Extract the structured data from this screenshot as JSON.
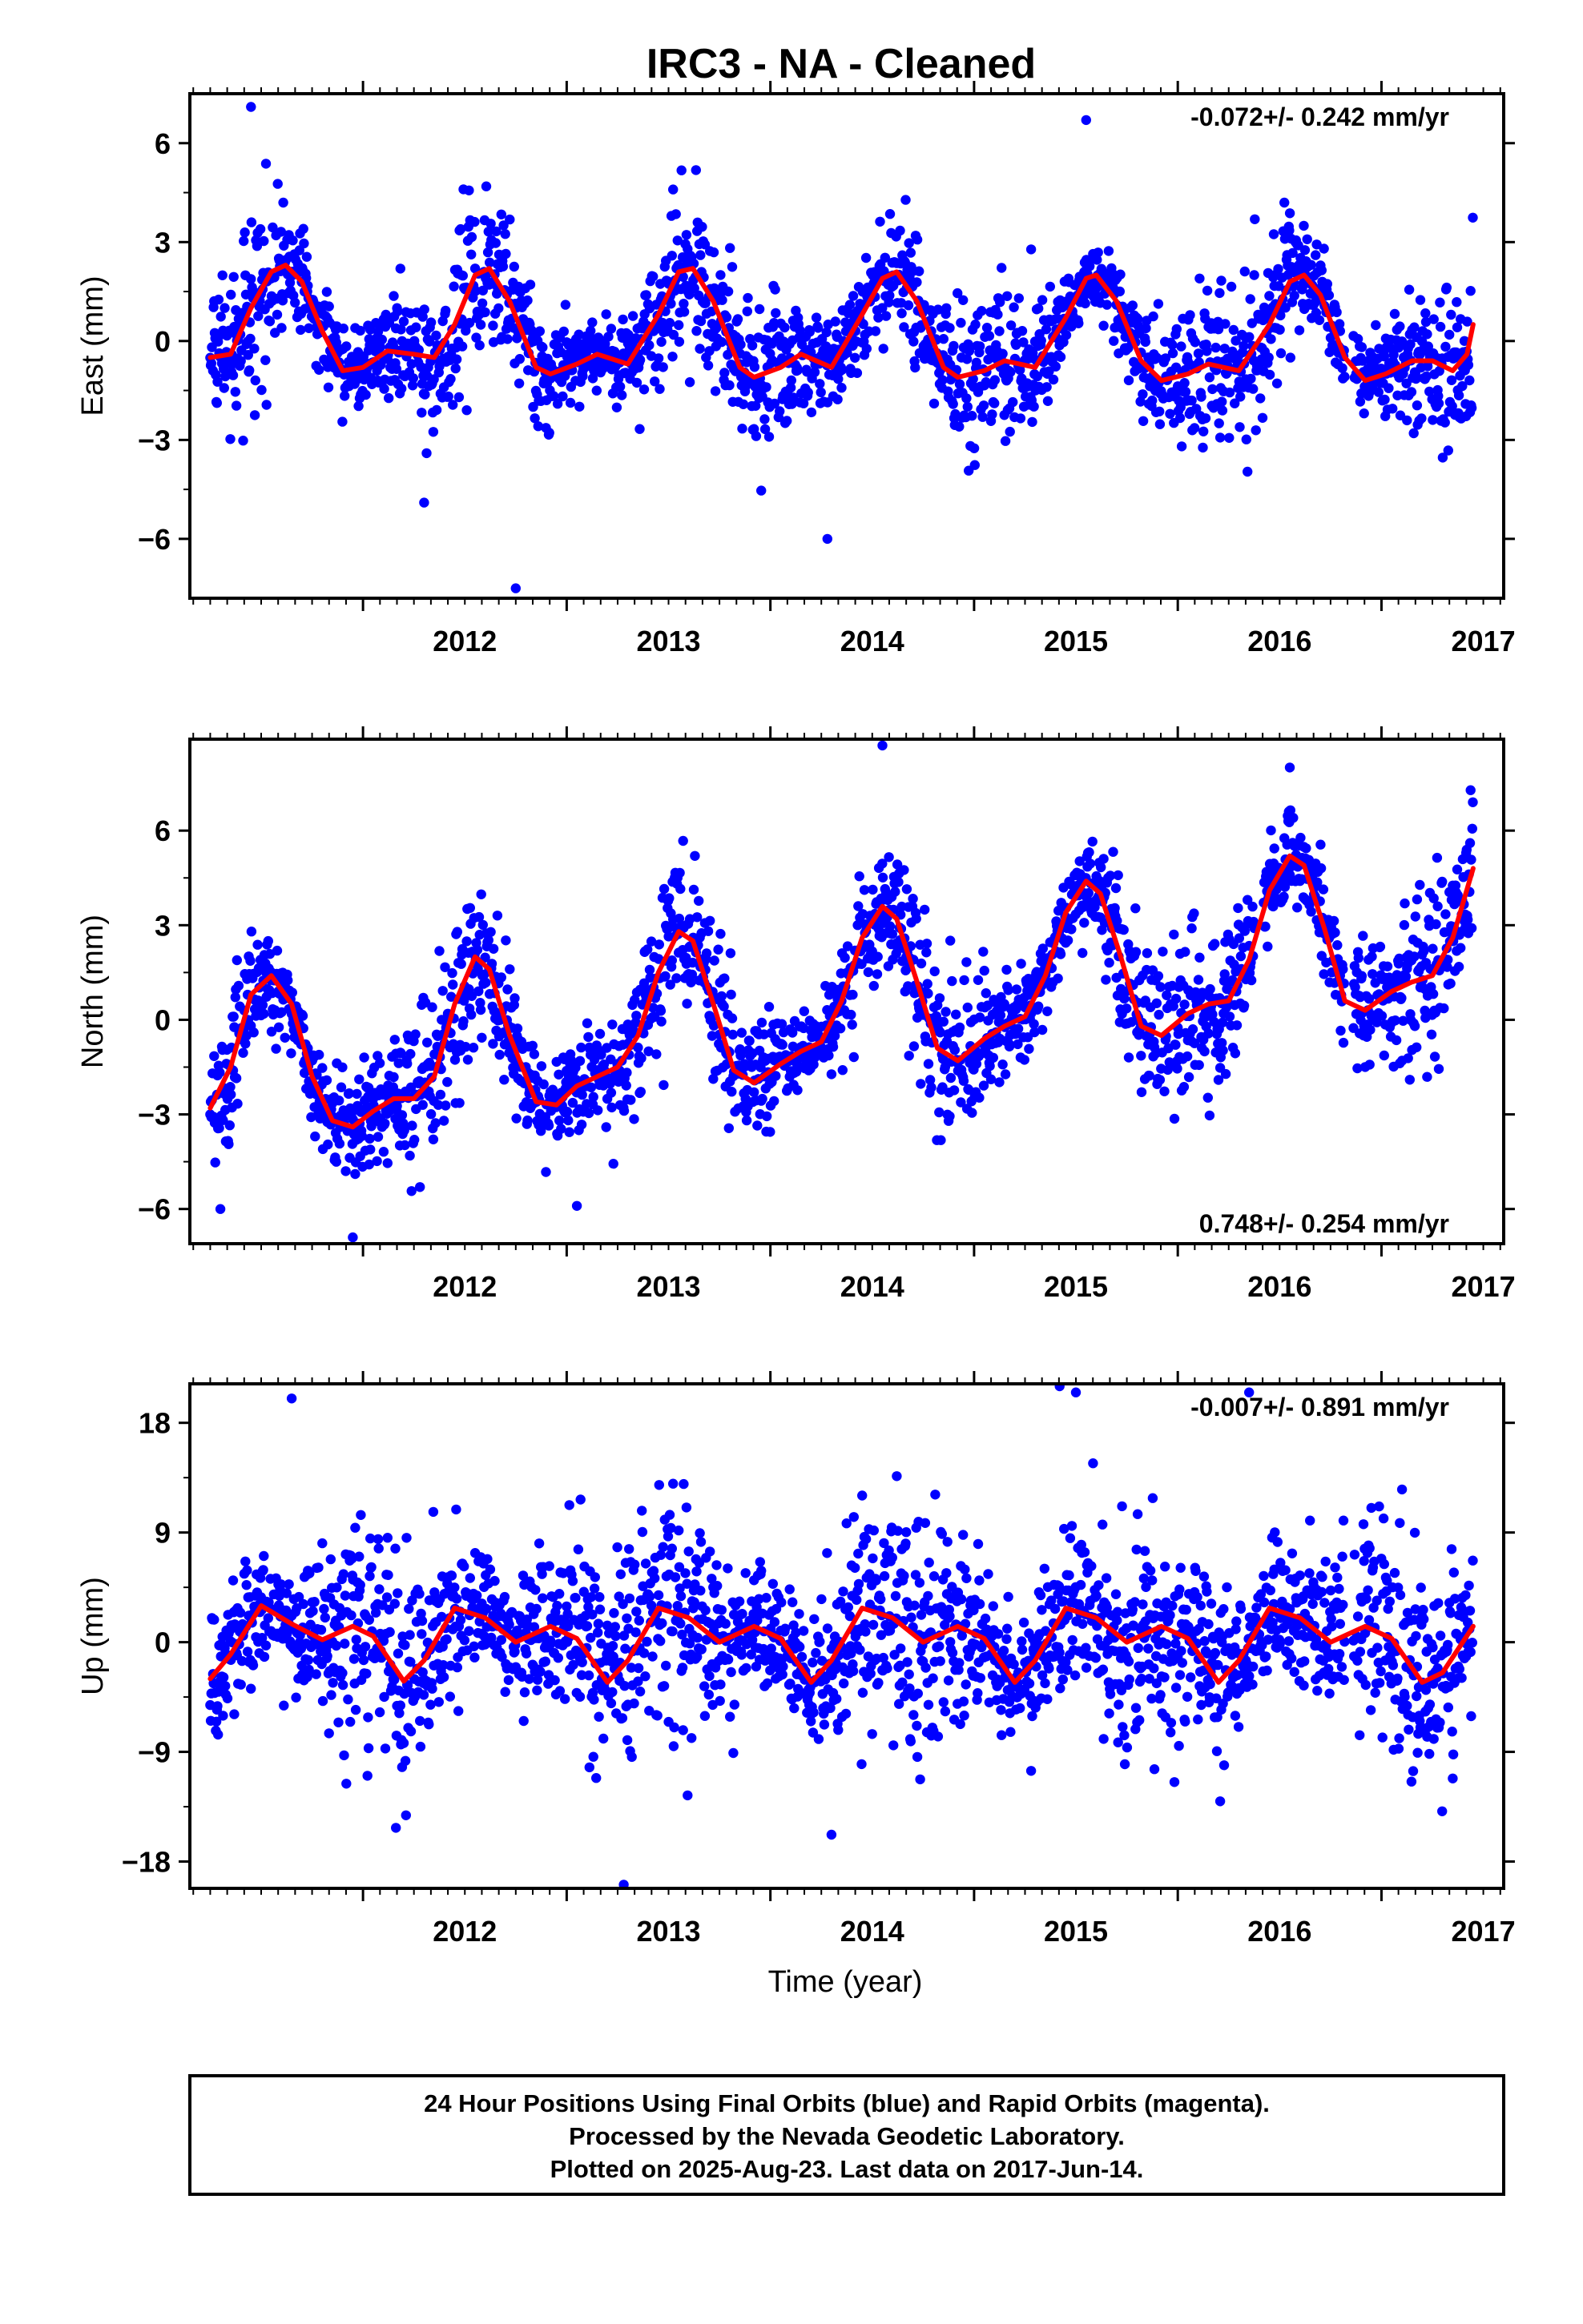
{
  "title": "IRC3  - NA - Cleaned",
  "xlabel": "Time (year)",
  "footer": {
    "lines": [
      "24 Hour Positions Using Final Orbits (blue) and Rapid Orbits (magenta).",
      "Processed by the Nevada Geodetic Laboratory.",
      "Plotted on 2025-Aug-23. Last data on 2017-Jun-14."
    ]
  },
  "colors": {
    "points": "#0000ff",
    "fit": "#ff0000",
    "frame": "#000000"
  },
  "chart_data": [
    {
      "type": "scatter",
      "ylabel": "East (mm)",
      "rate_label": "-0.072+/- 0.242 mm/yr",
      "rate_position": "top-right",
      "xlim": [
        2011.15,
        2017.6
      ],
      "ylim": [
        -7.8,
        7.5
      ],
      "xticks": [
        2012,
        2013,
        2014,
        2015,
        2016,
        2017
      ],
      "yticks": [
        6,
        3,
        0,
        -3,
        -6
      ],
      "ytick_labels": [
        "6",
        "3",
        "0",
        "−3",
        "−6"
      ],
      "grid": false,
      "series": [
        {
          "kind": "daily-positions",
          "x_start": 2011.25,
          "x_end": 2017.45,
          "gaps": [
            [
              2016.82,
              2016.86
            ]
          ],
          "seasonal_amp": 1.6,
          "seasonal_phase": 2011.6,
          "semi_amp": 0.0,
          "trend": 0.0,
          "offset": 0.4,
          "noise": 1.1,
          "outliers": [
            [
              2011.45,
              7.1
            ],
            [
              2012.75,
              -7.5
            ],
            [
              2014.28,
              -6.0
            ],
            [
              2012.3,
              -4.9
            ],
            [
              2015.55,
              6.7
            ]
          ]
        },
        {
          "kind": "model-fit",
          "x_start": 2011.25,
          "x_end": 2017.45,
          "fit": [
            [
              2011.25,
              -0.5
            ],
            [
              2011.35,
              -0.4
            ],
            [
              2011.45,
              1.0
            ],
            [
              2011.55,
              2.1
            ],
            [
              2011.62,
              2.3
            ],
            [
              2011.7,
              1.8
            ],
            [
              2011.8,
              0.3
            ],
            [
              2011.9,
              -0.9
            ],
            [
              2012.0,
              -0.8
            ],
            [
              2012.12,
              -0.3
            ],
            [
              2012.25,
              -0.4
            ],
            [
              2012.35,
              -0.5
            ],
            [
              2012.45,
              0.5
            ],
            [
              2012.55,
              2.0
            ],
            [
              2012.62,
              2.2
            ],
            [
              2012.72,
              1.2
            ],
            [
              2012.85,
              -0.8
            ],
            [
              2012.92,
              -1.0
            ],
            [
              2013.05,
              -0.7
            ],
            [
              2013.15,
              -0.4
            ],
            [
              2013.3,
              -0.7
            ],
            [
              2013.45,
              0.8
            ],
            [
              2013.55,
              2.1
            ],
            [
              2013.62,
              2.2
            ],
            [
              2013.72,
              1.2
            ],
            [
              2013.85,
              -0.8
            ],
            [
              2013.92,
              -1.1
            ],
            [
              2014.05,
              -0.8
            ],
            [
              2014.15,
              -0.4
            ],
            [
              2014.3,
              -0.8
            ],
            [
              2014.45,
              0.8
            ],
            [
              2014.55,
              1.9
            ],
            [
              2014.62,
              2.1
            ],
            [
              2014.72,
              1.2
            ],
            [
              2014.85,
              -0.8
            ],
            [
              2014.92,
              -1.1
            ],
            [
              2015.05,
              -0.9
            ],
            [
              2015.15,
              -0.6
            ],
            [
              2015.3,
              -0.8
            ],
            [
              2015.45,
              0.7
            ],
            [
              2015.55,
              1.9
            ],
            [
              2015.6,
              2.0
            ],
            [
              2015.7,
              1.2
            ],
            [
              2015.82,
              -0.6
            ],
            [
              2015.92,
              -1.2
            ],
            [
              2016.05,
              -1.0
            ],
            [
              2016.15,
              -0.7
            ],
            [
              2016.3,
              -0.9
            ],
            [
              2016.45,
              0.5
            ],
            [
              2016.55,
              1.8
            ],
            [
              2016.62,
              2.0
            ],
            [
              2016.7,
              1.4
            ],
            [
              2016.82,
              -0.5
            ],
            [
              2016.92,
              -1.2
            ],
            [
              2017.02,
              -1.0
            ],
            [
              2017.15,
              -0.6
            ],
            [
              2017.25,
              -0.6
            ],
            [
              2017.35,
              -0.9
            ],
            [
              2017.42,
              -0.4
            ],
            [
              2017.45,
              0.5
            ]
          ]
        }
      ]
    },
    {
      "type": "scatter",
      "ylabel": "North (mm)",
      "rate_label": "0.748+/- 0.254 mm/yr",
      "rate_position": "bottom-right",
      "xlim": [
        2011.15,
        2017.6
      ],
      "ylim": [
        -7.1,
        8.9
      ],
      "xticks": [
        2012,
        2013,
        2014,
        2015,
        2016,
        2017
      ],
      "yticks": [
        6,
        3,
        0,
        -3,
        -6
      ],
      "ytick_labels": [
        "6",
        "3",
        "0",
        "−3",
        "−6"
      ],
      "grid": false,
      "series": [
        {
          "kind": "daily-positions",
          "x_start": 2011.25,
          "x_end": 2017.45,
          "gaps": [
            [
              2016.38,
              2016.42
            ],
            [
              2016.82,
              2016.86
            ]
          ],
          "seasonal_amp": 2.2,
          "seasonal_phase": 2011.58,
          "semi_amp": 0.0,
          "trend": 0.75,
          "offset": -2.1,
          "noise": 1.2,
          "outliers": [
            [
              2011.3,
              -6.0
            ],
            [
              2011.95,
              -6.9
            ],
            [
              2014.55,
              8.7
            ],
            [
              2013.05,
              -5.9
            ],
            [
              2016.55,
              8.0
            ]
          ]
        },
        {
          "kind": "model-fit",
          "x_start": 2011.25,
          "x_end": 2017.45,
          "fit": [
            [
              2011.25,
              -2.8
            ],
            [
              2011.35,
              -1.5
            ],
            [
              2011.45,
              0.8
            ],
            [
              2011.55,
              1.4
            ],
            [
              2011.65,
              0.5
            ],
            [
              2011.75,
              -1.8
            ],
            [
              2011.85,
              -3.2
            ],
            [
              2011.95,
              -3.4
            ],
            [
              2012.05,
              -2.9
            ],
            [
              2012.15,
              -2.5
            ],
            [
              2012.25,
              -2.5
            ],
            [
              2012.35,
              -1.8
            ],
            [
              2012.45,
              0.5
            ],
            [
              2012.55,
              2.0
            ],
            [
              2012.62,
              1.6
            ],
            [
              2012.72,
              -0.5
            ],
            [
              2012.85,
              -2.6
            ],
            [
              2012.95,
              -2.7
            ],
            [
              2013.05,
              -2.1
            ],
            [
              2013.15,
              -1.8
            ],
            [
              2013.25,
              -1.5
            ],
            [
              2013.35,
              -0.5
            ],
            [
              2013.45,
              1.5
            ],
            [
              2013.55,
              2.8
            ],
            [
              2013.62,
              2.5
            ],
            [
              2013.72,
              0.5
            ],
            [
              2013.82,
              -1.6
            ],
            [
              2013.92,
              -2.0
            ],
            [
              2014.05,
              -1.4
            ],
            [
              2014.15,
              -1.0
            ],
            [
              2014.25,
              -0.7
            ],
            [
              2014.35,
              0.6
            ],
            [
              2014.45,
              2.6
            ],
            [
              2014.55,
              3.6
            ],
            [
              2014.62,
              3.2
            ],
            [
              2014.72,
              1.2
            ],
            [
              2014.82,
              -0.9
            ],
            [
              2014.92,
              -1.3
            ],
            [
              2015.05,
              -0.6
            ],
            [
              2015.15,
              -0.2
            ],
            [
              2015.25,
              0.1
            ],
            [
              2015.35,
              1.4
            ],
            [
              2015.45,
              3.4
            ],
            [
              2015.55,
              4.4
            ],
            [
              2015.62,
              4.0
            ],
            [
              2015.72,
              2.0
            ],
            [
              2015.82,
              -0.2
            ],
            [
              2015.92,
              -0.5
            ],
            [
              2016.05,
              0.2
            ],
            [
              2016.15,
              0.5
            ],
            [
              2016.25,
              0.6
            ],
            [
              2016.35,
              1.9
            ],
            [
              2016.45,
              4.1
            ],
            [
              2016.55,
              5.2
            ],
            [
              2016.62,
              4.9
            ],
            [
              2016.72,
              2.9
            ],
            [
              2016.82,
              0.6
            ],
            [
              2016.92,
              0.3
            ],
            [
              2017.05,
              0.9
            ],
            [
              2017.15,
              1.2
            ],
            [
              2017.25,
              1.4
            ],
            [
              2017.35,
              2.6
            ],
            [
              2017.45,
              4.8
            ]
          ]
        }
      ]
    },
    {
      "type": "scatter",
      "ylabel": "Up (mm)",
      "rate_label": "-0.007+/- 0.891 mm/yr",
      "rate_position": "top-right",
      "xlim": [
        2011.15,
        2017.6
      ],
      "ylim": [
        -20.2,
        21.2
      ],
      "xticks": [
        2012,
        2013,
        2014,
        2015,
        2016,
        2017
      ],
      "yticks": [
        18,
        9,
        0,
        -9,
        -18
      ],
      "ytick_labels": [
        "18",
        "9",
        "0",
        "−9",
        "−18"
      ],
      "grid": false,
      "series": [
        {
          "kind": "daily-positions",
          "x_start": 2011.25,
          "x_end": 2017.45,
          "gaps": [
            [
              2016.82,
              2016.86
            ]
          ],
          "seasonal_amp": 2.3,
          "seasonal_phase": 2011.5,
          "semi_amp": 0.0,
          "trend": 0.0,
          "offset": 0.0,
          "noise": 4.3,
          "outliers": [
            [
              2011.65,
              20.0
            ],
            [
              2013.28,
              -19.9
            ],
            [
              2015.42,
              21.0
            ],
            [
              2015.5,
              20.5
            ],
            [
              2014.3,
              -15.8
            ],
            [
              2016.35,
              20.5
            ]
          ]
        },
        {
          "kind": "model-fit",
          "x_start": 2011.25,
          "x_end": 2017.45,
          "fit": [
            [
              2011.25,
              -3.0
            ],
            [
              2011.35,
              -1.0
            ],
            [
              2011.5,
              3.0
            ],
            [
              2011.65,
              1.5
            ],
            [
              2011.8,
              0.2
            ],
            [
              2011.95,
              1.3
            ],
            [
              2012.05,
              0.5
            ],
            [
              2012.2,
              -3.2
            ],
            [
              2012.3,
              -1.5
            ],
            [
              2012.45,
              2.8
            ],
            [
              2012.6,
              2.0
            ],
            [
              2012.75,
              0.0
            ],
            [
              2012.92,
              1.3
            ],
            [
              2013.05,
              0.3
            ],
            [
              2013.2,
              -3.3
            ],
            [
              2013.3,
              -1.5
            ],
            [
              2013.45,
              2.8
            ],
            [
              2013.6,
              2.0
            ],
            [
              2013.75,
              0.0
            ],
            [
              2013.92,
              1.3
            ],
            [
              2014.05,
              0.3
            ],
            [
              2014.2,
              -3.3
            ],
            [
              2014.3,
              -1.5
            ],
            [
              2014.45,
              2.8
            ],
            [
              2014.6,
              2.0
            ],
            [
              2014.75,
              0.0
            ],
            [
              2014.92,
              1.3
            ],
            [
              2015.05,
              0.3
            ],
            [
              2015.2,
              -3.3
            ],
            [
              2015.3,
              -1.5
            ],
            [
              2015.45,
              2.8
            ],
            [
              2015.6,
              2.0
            ],
            [
              2015.75,
              0.0
            ],
            [
              2015.92,
              1.3
            ],
            [
              2016.05,
              0.3
            ],
            [
              2016.2,
              -3.3
            ],
            [
              2016.3,
              -1.5
            ],
            [
              2016.45,
              2.8
            ],
            [
              2016.6,
              2.0
            ],
            [
              2016.75,
              0.0
            ],
            [
              2016.92,
              1.3
            ],
            [
              2017.05,
              0.3
            ],
            [
              2017.2,
              -3.3
            ],
            [
              2017.3,
              -2.5
            ],
            [
              2017.45,
              1.3
            ]
          ]
        }
      ]
    }
  ]
}
